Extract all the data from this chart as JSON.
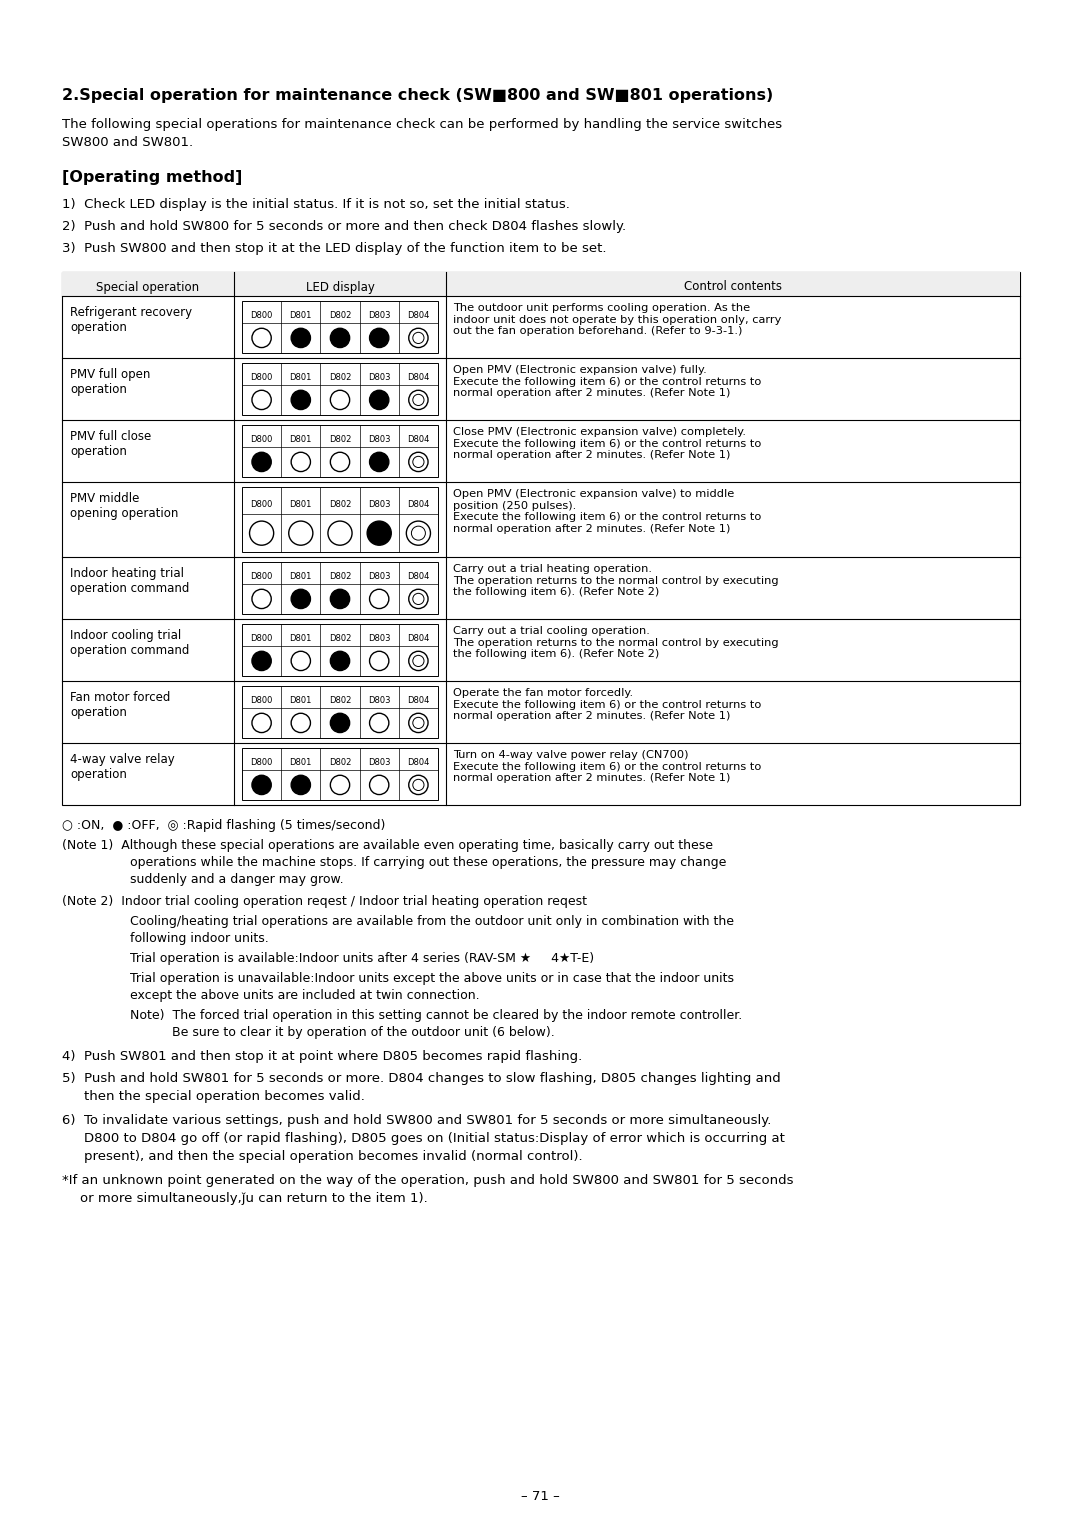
{
  "bg_color": "#ffffff",
  "page_number": "– 71 –",
  "title": "2.Special operation for maintenance check (SW■800 and SW■801 operations)",
  "intro": "The following special operations for maintenance check can be performed by handling the service switches SW800 and SW801.",
  "method_header": "[Operating method]",
  "items_123": [
    "1)  Check LED display is the initial status. If it is not so, set the initial status.",
    "2)  Push and hold SW800 for 5 seconds or more and then check D804 flashes slowly.",
    "3)  Push SW800 and then stop it at the LED display of the function item to be set."
  ],
  "table_headers": [
    "Special operation",
    "LED display",
    "Control contents"
  ],
  "led_labels": [
    "D800",
    "D801",
    "D802",
    "D803",
    "D804"
  ],
  "rows": [
    {
      "op": "Refrigerant recovery\noperation",
      "leds": [
        0,
        1,
        1,
        1,
        2
      ],
      "control": "The outdoor unit performs cooling operation. As the\nindoor unit does not operate by this operation only, carry\nout the fan operation beforehand. (Refer to 9-3-1.)"
    },
    {
      "op": "PMV full open\noperation",
      "leds": [
        0,
        1,
        0,
        1,
        2
      ],
      "control": "Open PMV (Electronic expansion valve) fully.\nExecute the following item 6) or the control returns to\nnormal operation after 2 minutes. (Refer Note 1)"
    },
    {
      "op": "PMV full close\noperation",
      "leds": [
        1,
        0,
        0,
        1,
        2
      ],
      "control": "Close PMV (Electronic expansion valve) completely.\nExecute the following item 6) or the control returns to\nnormal operation after 2 minutes. (Refer Note 1)"
    },
    {
      "op": "PMV middle\nopening operation",
      "leds": [
        0,
        0,
        0,
        1,
        2
      ],
      "control": "Open PMV (Electronic expansion valve) to middle\nposition (250 pulses).\nExecute the following item 6) or the control returns to\nnormal operation after 2 minutes. (Refer Note 1)"
    },
    {
      "op": "Indoor heating trial\noperation command",
      "leds": [
        0,
        1,
        1,
        0,
        2
      ],
      "control": "Carry out a trial heating operation.\nThe operation returns to the normal control by executing\nthe following item 6). (Refer Note 2)"
    },
    {
      "op": "Indoor cooling trial\noperation command",
      "leds": [
        1,
        0,
        1,
        0,
        2
      ],
      "control": "Carry out a trial cooling operation.\nThe operation returns to the normal control by executing\nthe following item 6). (Refer Note 2)"
    },
    {
      "op": "Fan motor forced\noperation",
      "leds": [
        0,
        0,
        1,
        0,
        2
      ],
      "control": "Operate the fan motor forcedly.\nExecute the following item 6) or the control returns to\nnormal operation after 2 minutes. (Refer Note 1)"
    },
    {
      "op": "4-way valve relay\noperation",
      "leds": [
        1,
        1,
        0,
        0,
        2
      ],
      "control": "Turn on 4-way valve power relay (CN700)\nExecute the following item 6) or the control returns to\nnormal operation after 2 minutes. (Refer Note 1)"
    }
  ],
  "legend": "○ :ON,  ● :OFF,  ◎ :Rapid flashing (5 times/second)",
  "note1_line1": "(Note 1)  Although these special operations are available even operating time, basically carry out these",
  "note1_line2": "operations while the machine stops. If carrying out these operations, the pressure may change",
  "note1_line3": "suddenly and a danger may grow.",
  "note2_line1": "(Note 2)  Indoor trial cooling operation reqest / Indoor trial heating operation reqest",
  "note2_line2": "Cooling/heating trial operations are available from the outdoor unit only in combination with the",
  "note2_line3": "following indoor units.",
  "note2_line4": "Trial operation is available:Indoor units after 4 series (RAV-SM ★     4★T-E)",
  "note2_line5": "Trial operation is unavailable:Indoor units except the above units or in case that the indoor units",
  "note2_line6": "except the above units are included at twin connection.",
  "note2_line7": "Note)  The forced trial operation in this setting cannot be cleared by the indoor remote controller.",
  "note2_line8": "Be sure to clear it by operation of the outdoor unit (6 below).",
  "item4": "4)  Push SW801 and then stop it at point where D805 becomes rapid flashing.",
  "item5_l1": "5)  Push and hold SW801 for 5 seconds or more. D804 changes to slow flashing, D805 changes lighting and",
  "item5_l2": "then the special operation becomes valid.",
  "item6_l1": "6)  To invalidate various settings, push and hold SW800 and SW801 for 5 seconds or more simultaneously.",
  "item6_l2": "D800 to D804 go off (or rapid flashing), D805 goes on (Initial status:Display of error which is occurring at",
  "item6_l3": "present), and then the special operation becomes invalid (normal control).",
  "star_l1": "*If an unknown point generated on the way of the operation, push and hold SW800 and SW801 for 5 seconds",
  "star_l2": "or more simultaneously,ǰu can return to the item 1)."
}
